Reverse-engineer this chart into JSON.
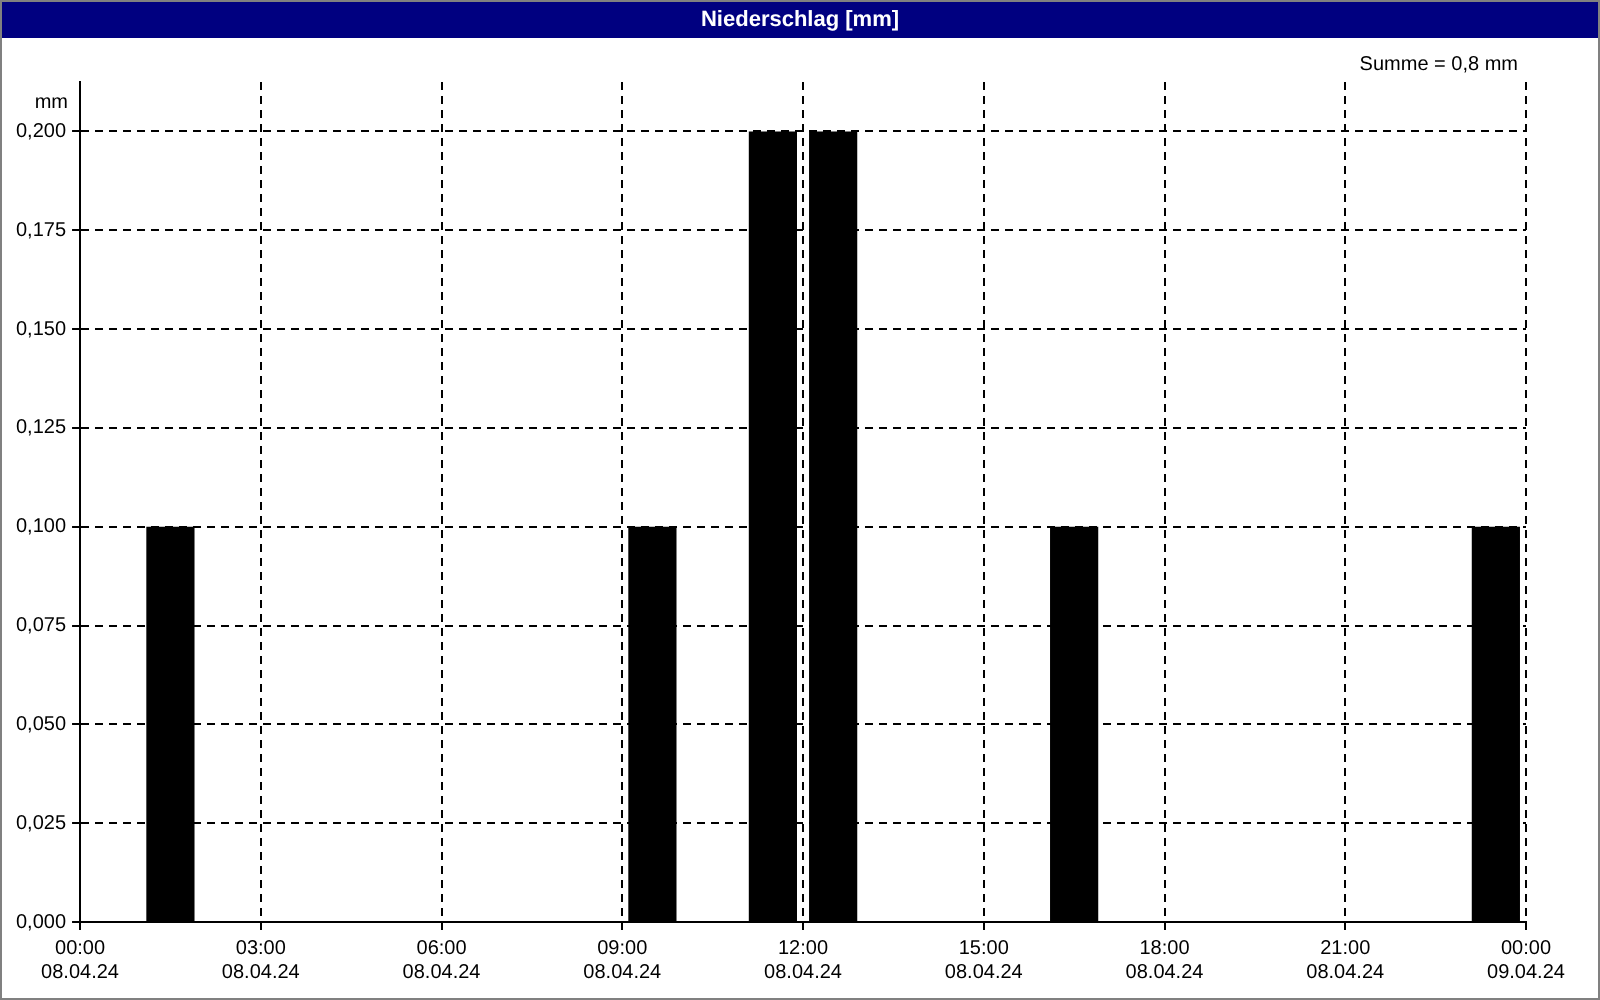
{
  "chart_data": {
    "type": "bar",
    "title": "Niederschlag [mm]",
    "ylabel": "mm",
    "annotations": [
      "Summe = 0,8 mm"
    ],
    "x": [
      "--04-08T01:30",
      "--04-08T09:30",
      "--04-08T11:30",
      "--04-08T12:30",
      "--04-08T16:30",
      "--04-08T23:30"
    ],
    "values": [
      0.1,
      0.1,
      0.2,
      0.2,
      0.1,
      0.1
    ],
    "color": "#000000",
    "xlim": [
      "--04-08T00:00",
      "--04-09T00:00"
    ],
    "xticks": [
      {
        "value": "--04-08T00:00",
        "label": "00:00 08.04.24"
      },
      {
        "value": "--04-08T03:00",
        "label": "03:00 08.04.24"
      },
      {
        "value": "--04-08T06:00",
        "label": "06:00 08.04.24"
      },
      {
        "value": "--04-08T09:00",
        "label": "09:00 08.04.24"
      },
      {
        "value": "--04-08T12:00",
        "label": "12:00 08.04.24"
      },
      {
        "value": "--04-08T15:00",
        "label": "15:00 08.04.24"
      },
      {
        "value": "--04-08T18:00",
        "label": "18:00 08.04.24"
      },
      {
        "value": "--04-08T21:00",
        "label": "21:00 08.04.24"
      },
      {
        "value": "--04-09T00:00",
        "label": "00:00 09.04.24"
      }
    ],
    "ylim": [
      0,
      0.2125
    ],
    "yticks": [
      {
        "value": 0,
        "label": "0,000"
      },
      {
        "value": 0.025,
        "label": "0,025"
      },
      {
        "value": 0.05,
        "label": "0,050"
      },
      {
        "value": 0.075,
        "label": "0,075"
      },
      {
        "value": 0.1,
        "label": "0,100"
      },
      {
        "value": 0.125,
        "label": "0,125"
      },
      {
        "value": 0.15,
        "label": "0,150"
      },
      {
        "value": 0.175,
        "label": "0,175"
      },
      {
        "value": 0.2,
        "label": "0,200"
      }
    ],
    "grid": true,
    "legend": false
  }
}
